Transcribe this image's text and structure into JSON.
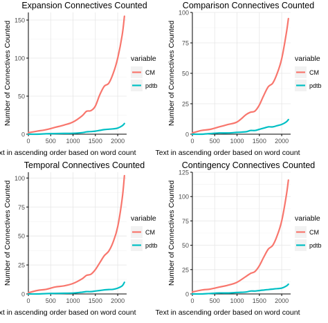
{
  "colors": {
    "cm": "#F8766D",
    "pdtb": "#00BFC4",
    "axis": "#000000",
    "background": "#ffffff"
  },
  "panels": [
    {
      "title": "Expansion Connectives Counted",
      "legend_title": "variable",
      "legend_items": [
        {
          "label": "CM",
          "color": "#F8766D"
        },
        {
          "label": "pdtb",
          "color": "#00BFC4"
        }
      ]
    },
    {
      "title": "Comparison Connectives Counted",
      "legend_title": "variable",
      "legend_items": [
        {
          "label": "CM",
          "color": "#F8766D"
        },
        {
          "label": "pdtb",
          "color": "#00BFC4"
        }
      ]
    },
    {
      "title": "Temporal Connectives Counted",
      "legend_title": "variable",
      "legend_items": [
        {
          "label": "CM",
          "color": "#F8766D"
        },
        {
          "label": "pdtb",
          "color": "#00BFC4"
        }
      ]
    },
    {
      "title": "Contingency Connectives Counted",
      "legend_title": "variable",
      "legend_items": [
        {
          "label": "CM",
          "color": "#F8766D"
        },
        {
          "label": "pdtb",
          "color": "#00BFC4"
        }
      ]
    }
  ],
  "chart_data": [
    {
      "type": "line",
      "title": "Expansion Connectives Counted",
      "xlabel": "Text in ascending order based on word count",
      "ylabel": "Number of Connectives Counted",
      "xlim": [
        0,
        2200
      ],
      "ylim": [
        0,
        160
      ],
      "xticks": [
        0,
        500,
        1000,
        1500,
        2000
      ],
      "yticks": [
        0,
        50,
        100,
        150
      ],
      "grid": true,
      "legend": "right",
      "x": [
        0,
        200,
        400,
        600,
        800,
        1000,
        1200,
        1300,
        1400,
        1500,
        1600,
        1700,
        1800,
        1900,
        2000,
        2100,
        2150
      ],
      "series": [
        {
          "name": "CM",
          "values": [
            2,
            4,
            6,
            9,
            12,
            16,
            24,
            30,
            31,
            37,
            52,
            63,
            67,
            80,
            100,
            130,
            155
          ]
        },
        {
          "name": "pdtb",
          "values": [
            0,
            0,
            0.5,
            0.8,
            1,
            1.2,
            2,
            3,
            3.5,
            4,
            5,
            6,
            6.5,
            7,
            8,
            11,
            14
          ]
        }
      ]
    },
    {
      "type": "line",
      "title": "Comparison Connectives Counted",
      "xlabel": "Text in ascending order based on word count",
      "ylabel": "Number of Connectives Counted",
      "xlim": [
        0,
        2200
      ],
      "ylim": [
        0,
        100
      ],
      "xticks": [
        0,
        500,
        1000,
        1500,
        2000
      ],
      "yticks": [
        0,
        25,
        50,
        75,
        100
      ],
      "grid": true,
      "legend": "right",
      "x": [
        0,
        200,
        400,
        600,
        800,
        1000,
        1200,
        1300,
        1400,
        1500,
        1600,
        1700,
        1800,
        1900,
        2000,
        2100,
        2150
      ],
      "series": [
        {
          "name": "CM",
          "values": [
            1,
            3,
            4,
            6,
            8,
            10,
            16,
            18,
            19,
            24,
            32,
            39,
            42,
            50,
            62,
            82,
            95
          ]
        },
        {
          "name": "pdtb",
          "values": [
            0,
            0,
            0.5,
            1,
            1,
            1.5,
            2,
            3,
            3,
            4,
            5,
            6,
            6,
            7,
            8,
            10,
            12
          ]
        }
      ]
    },
    {
      "type": "line",
      "title": "Temporal Connectives Counted",
      "xlabel": "Text in ascending order based on word count",
      "ylabel": "Number of Connectives Counted",
      "xlim": [
        0,
        2200
      ],
      "ylim": [
        0,
        105
      ],
      "xticks": [
        0,
        500,
        1000,
        1500,
        2000
      ],
      "yticks": [
        0,
        25,
        50,
        75,
        100
      ],
      "grid": true,
      "legend": "right",
      "x": [
        0,
        200,
        400,
        600,
        800,
        1000,
        1200,
        1300,
        1400,
        1500,
        1600,
        1700,
        1800,
        1900,
        2000,
        2100,
        2150
      ],
      "series": [
        {
          "name": "CM",
          "values": [
            1,
            3,
            4,
            6,
            7,
            9,
            13,
            16,
            17,
            21,
            27,
            33,
            37,
            45,
            58,
            82,
            102
          ]
        },
        {
          "name": "pdtb",
          "values": [
            0,
            0,
            0.3,
            0.5,
            0.6,
            0.8,
            1.5,
            2,
            2,
            2.5,
            3,
            3.5,
            3.8,
            4,
            5,
            7,
            10
          ]
        }
      ]
    },
    {
      "type": "line",
      "title": "Contingency Connectives Counted",
      "xlabel": "Text in ascending order based on word count",
      "ylabel": "Number of Connectives Counted",
      "xlim": [
        0,
        2200
      ],
      "ylim": [
        0,
        125
      ],
      "xticks": [
        0,
        500,
        1000,
        1500,
        2000
      ],
      "yticks": [
        0,
        25,
        50,
        75,
        100,
        125
      ],
      "grid": true,
      "legend": "right",
      "x": [
        0,
        200,
        400,
        600,
        800,
        1000,
        1200,
        1300,
        1400,
        1500,
        1600,
        1700,
        1800,
        1900,
        2000,
        2100,
        2150
      ],
      "series": [
        {
          "name": "CM",
          "values": [
            2,
            4,
            5,
            7,
            9,
            12,
            18,
            21,
            23,
            29,
            38,
            46,
            50,
            60,
            75,
            100,
            117
          ]
        },
        {
          "name": "pdtb",
          "values": [
            0,
            0,
            0.5,
            1,
            1,
            1.5,
            2,
            3,
            3,
            3.5,
            4,
            4.5,
            5,
            5.5,
            6,
            8,
            10
          ]
        }
      ]
    }
  ]
}
